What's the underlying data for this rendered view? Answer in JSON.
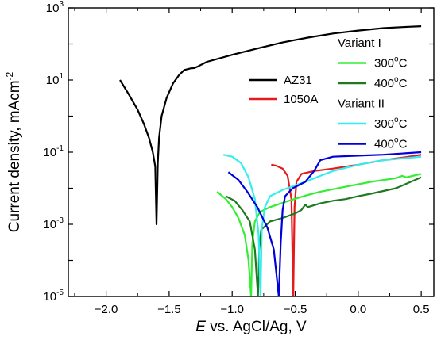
{
  "chart_data": {
    "type": "line",
    "xlabel_italic": "E",
    "xlabel_rest": " vs. AgCl/Ag, V",
    "ylabel_main": "Current density, mAcm",
    "ylabel_sup": "-2",
    "y_scale": "log",
    "xlim": [
      -2.3,
      0.6
    ],
    "ylim": [
      1e-05,
      1000
    ],
    "x_ticks": [
      {
        "value": -2.0,
        "label": "−2.0"
      },
      {
        "value": -1.5,
        "label": "−1.5"
      },
      {
        "value": -1.0,
        "label": "−1.0"
      },
      {
        "value": -0.5,
        "label": "−0.5"
      },
      {
        "value": 0.0,
        "label": "0.0"
      },
      {
        "value": 0.5,
        "label": "0.5"
      }
    ],
    "y_ticks": [
      {
        "value": 1e-05,
        "base": "10",
        "exp": "-5"
      },
      {
        "value": 0.001,
        "base": "10",
        "exp": "-3"
      },
      {
        "value": 0.1,
        "base": "10",
        "exp": "-1"
      },
      {
        "value": 10,
        "base": "10",
        "exp": "1"
      },
      {
        "value": 1000,
        "base": "10",
        "exp": "3"
      }
    ],
    "legend": {
      "placement": "top-right",
      "groups": [
        "Variant I",
        "Variant II"
      ]
    },
    "series": [
      {
        "name": "AZ31",
        "color": "#000000",
        "points": [
          [
            -1.89,
            10
          ],
          [
            -1.82,
            4.0
          ],
          [
            -1.75,
            1.5
          ],
          [
            -1.7,
            0.6
          ],
          [
            -1.66,
            0.25
          ],
          [
            -1.63,
            0.1
          ],
          [
            -1.61,
            0.04
          ],
          [
            -1.6,
            0.001
          ],
          [
            -1.59,
            0.05
          ],
          [
            -1.58,
            0.25
          ],
          [
            -1.56,
            1.0
          ],
          [
            -1.52,
            3.2
          ],
          [
            -1.47,
            8.0
          ],
          [
            -1.42,
            14
          ],
          [
            -1.38,
            19
          ],
          [
            -1.33,
            21
          ],
          [
            -1.3,
            21.5
          ],
          [
            -1.27,
            24
          ],
          [
            -1.2,
            32
          ],
          [
            -1.0,
            50
          ],
          [
            -0.8,
            75
          ],
          [
            -0.6,
            110
          ],
          [
            -0.4,
            150
          ],
          [
            -0.2,
            195
          ],
          [
            0.0,
            235
          ],
          [
            0.2,
            275
          ],
          [
            0.4,
            300
          ],
          [
            0.5,
            310
          ]
        ]
      },
      {
        "name": "1050A",
        "color": "#e41a1c",
        "points": [
          [
            -0.69,
            0.045
          ],
          [
            -0.65,
            0.042
          ],
          [
            -0.6,
            0.035
          ],
          [
            -0.56,
            0.022
          ],
          [
            -0.53,
            0.005
          ],
          [
            -0.515,
            1e-05
          ],
          [
            -0.505,
            0.003
          ],
          [
            -0.49,
            0.015
          ],
          [
            -0.45,
            0.025
          ],
          [
            -0.35,
            0.03
          ],
          [
            -0.2,
            0.035
          ],
          [
            0.0,
            0.045
          ],
          [
            0.2,
            0.06
          ],
          [
            0.4,
            0.075
          ],
          [
            0.5,
            0.085
          ]
        ]
      },
      {
        "name": "300°C",
        "group": "Variant I",
        "color": "#33ee33",
        "points": [
          [
            -1.12,
            0.008
          ],
          [
            -1.05,
            0.005
          ],
          [
            -1.0,
            0.003
          ],
          [
            -0.95,
            0.0015
          ],
          [
            -0.9,
            0.0005
          ],
          [
            -0.87,
            0.0001
          ],
          [
            -0.85,
            1e-05
          ],
          [
            -0.84,
            0.0003
          ],
          [
            -0.82,
            0.0012
          ],
          [
            -0.78,
            0.0022
          ],
          [
            -0.7,
            0.003
          ],
          [
            -0.55,
            0.0045
          ],
          [
            -0.4,
            0.0065
          ],
          [
            -0.3,
            0.008
          ],
          [
            -0.1,
            0.011
          ],
          [
            0.1,
            0.015
          ],
          [
            0.3,
            0.019
          ],
          [
            0.35,
            0.022
          ],
          [
            0.38,
            0.02
          ],
          [
            0.5,
            0.025
          ]
        ]
      },
      {
        "name": "400°C",
        "group": "Variant I",
        "color": "#1f7a1f",
        "points": [
          [
            -1.05,
            0.006
          ],
          [
            -0.98,
            0.0045
          ],
          [
            -0.92,
            0.0025
          ],
          [
            -0.86,
            0.0012
          ],
          [
            -0.82,
            0.0002
          ],
          [
            -0.795,
            1e-05
          ],
          [
            -0.785,
            0.0002
          ],
          [
            -0.77,
            0.0007
          ],
          [
            -0.7,
            0.0012
          ],
          [
            -0.6,
            0.0015
          ],
          [
            -0.5,
            0.002
          ],
          [
            -0.45,
            0.0025
          ],
          [
            -0.42,
            0.0035
          ],
          [
            -0.4,
            0.003
          ],
          [
            -0.3,
            0.0038
          ],
          [
            -0.2,
            0.0045
          ],
          [
            -0.1,
            0.005
          ],
          [
            0.0,
            0.006
          ],
          [
            0.1,
            0.007
          ],
          [
            0.3,
            0.01
          ],
          [
            0.5,
            0.02
          ]
        ]
      },
      {
        "name": "300°C",
        "group": "Variant II",
        "color": "#33eeee",
        "points": [
          [
            -1.07,
            0.085
          ],
          [
            -1.0,
            0.075
          ],
          [
            -0.93,
            0.05
          ],
          [
            -0.87,
            0.02
          ],
          [
            -0.82,
            0.005
          ],
          [
            -0.79,
            0.0005
          ],
          [
            -0.775,
            1e-05
          ],
          [
            -0.765,
            0.0008
          ],
          [
            -0.74,
            0.003
          ],
          [
            -0.7,
            0.006
          ],
          [
            -0.6,
            0.009
          ],
          [
            -0.5,
            0.012
          ],
          [
            -0.4,
            0.016
          ],
          [
            -0.3,
            0.022
          ],
          [
            -0.2,
            0.03
          ],
          [
            0.0,
            0.045
          ],
          [
            0.2,
            0.06
          ],
          [
            0.5,
            0.075
          ]
        ]
      },
      {
        "name": "400°C",
        "group": "Variant II",
        "color": "#0000dd",
        "points": [
          [
            -1.03,
            0.028
          ],
          [
            -0.95,
            0.017
          ],
          [
            -0.88,
            0.008
          ],
          [
            -0.8,
            0.003
          ],
          [
            -0.72,
            0.0008
          ],
          [
            -0.67,
            0.0002
          ],
          [
            -0.63,
            1e-05
          ],
          [
            -0.615,
            0.0003
          ],
          [
            -0.6,
            0.0025
          ],
          [
            -0.58,
            0.006
          ],
          [
            -0.52,
            0.01
          ],
          [
            -0.42,
            0.015
          ],
          [
            -0.35,
            0.03
          ],
          [
            -0.3,
            0.06
          ],
          [
            -0.2,
            0.075
          ],
          [
            0.0,
            0.08
          ],
          [
            0.2,
            0.085
          ],
          [
            0.5,
            0.1
          ]
        ]
      }
    ]
  }
}
